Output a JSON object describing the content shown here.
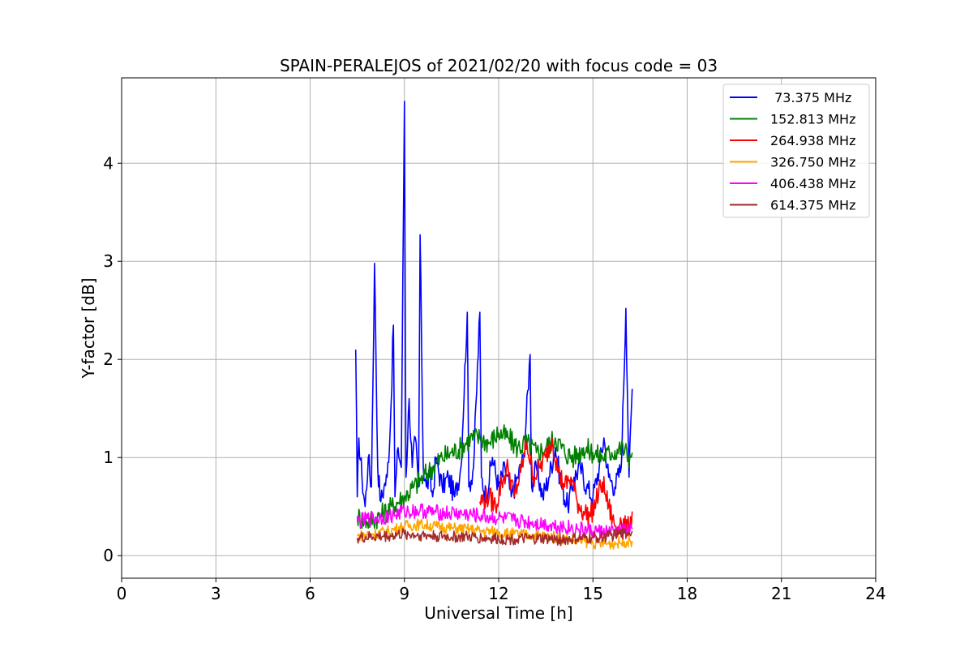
{
  "chart_data": {
    "type": "line",
    "title": "SPAIN-PERALEJOS of 2021/02/20 with focus code = 03",
    "xlabel": "Universal Time [h]",
    "ylabel": "Y-factor [dB]",
    "xlim": [
      0,
      24
    ],
    "ylim": [
      -0.23,
      4.87
    ],
    "xticks": [
      0,
      3,
      6,
      9,
      12,
      15,
      18,
      21,
      24
    ],
    "yticks": [
      0,
      1,
      2,
      3,
      4
    ],
    "grid": true,
    "legend_position": "top-right",
    "series": [
      {
        "name": " 73.375 MHz",
        "color": "#0000ff",
        "x": [
          7.45,
          7.5,
          7.55,
          7.65,
          7.75,
          7.85,
          7.95,
          8.05,
          8.15,
          8.25,
          8.35,
          8.45,
          8.55,
          8.65,
          8.7,
          8.8,
          8.9,
          9.0,
          9.05,
          9.15,
          9.25,
          9.35,
          9.45,
          9.5,
          9.6,
          9.7,
          9.8,
          9.9,
          10.0,
          10.2,
          10.4,
          10.6,
          10.8,
          11.0,
          11.05,
          11.2,
          11.4,
          11.45,
          11.6,
          11.8,
          12.0,
          12.2,
          12.4,
          12.6,
          12.8,
          13.0,
          13.05,
          13.2,
          13.4,
          13.6,
          13.8,
          14.0,
          14.2,
          14.4,
          14.6,
          14.8,
          15.0,
          15.2,
          15.35,
          15.5,
          15.7,
          15.9,
          16.05,
          16.15,
          16.25
        ],
        "y": [
          2.1,
          0.6,
          1.2,
          0.8,
          0.5,
          1.0,
          0.7,
          2.98,
          0.9,
          0.55,
          0.7,
          0.8,
          1.3,
          2.35,
          0.6,
          1.1,
          0.9,
          4.63,
          0.8,
          1.6,
          0.9,
          1.2,
          0.7,
          3.27,
          0.9,
          0.7,
          0.8,
          0.6,
          1.0,
          0.7,
          0.8,
          0.6,
          0.9,
          2.48,
          0.7,
          0.9,
          2.48,
          0.8,
          0.6,
          1.0,
          0.7,
          0.9,
          0.6,
          0.8,
          1.0,
          2.05,
          0.7,
          0.9,
          0.6,
          0.8,
          1.1,
          0.7,
          0.5,
          0.8,
          0.9,
          0.7,
          0.6,
          0.9,
          1.2,
          0.8,
          0.7,
          0.9,
          2.52,
          0.8,
          1.7
        ]
      },
      {
        "name": "152.813 MHz",
        "color": "#008000",
        "x": [
          7.5,
          7.8,
          8.2,
          8.6,
          9.0,
          9.3,
          9.6,
          9.9,
          10.2,
          10.5,
          10.8,
          11.1,
          11.4,
          11.7,
          12.0,
          12.3,
          12.6,
          12.9,
          13.2,
          13.5,
          13.8,
          14.1,
          14.4,
          14.7,
          15.0,
          15.3,
          15.6,
          15.9,
          16.2,
          16.25
        ],
        "y": [
          0.4,
          0.35,
          0.4,
          0.5,
          0.6,
          0.7,
          0.8,
          0.9,
          1.0,
          1.05,
          1.1,
          1.2,
          1.2,
          1.15,
          1.25,
          1.2,
          1.1,
          1.15,
          1.05,
          1.1,
          1.2,
          1.05,
          1.0,
          1.1,
          1.05,
          1.0,
          1.05,
          1.1,
          1.0,
          1.05
        ]
      },
      {
        "name": "264.938 MHz",
        "color": "#ff0000",
        "x": [
          11.4,
          11.7,
          11.9,
          12.1,
          12.3,
          12.5,
          12.7,
          12.9,
          13.1,
          13.3,
          13.5,
          13.7,
          13.9,
          14.1,
          14.3,
          14.5,
          14.7,
          14.9,
          15.1,
          15.3,
          15.5,
          15.7,
          15.9,
          16.1,
          16.25
        ],
        "y": [
          0.55,
          0.6,
          0.5,
          0.75,
          0.9,
          0.6,
          0.85,
          1.15,
          0.8,
          0.9,
          1.0,
          1.2,
          0.85,
          0.7,
          0.8,
          0.55,
          0.45,
          0.4,
          0.55,
          0.75,
          0.5,
          0.3,
          0.35,
          0.25,
          0.45
        ]
      },
      {
        "name": "326.750 MHz",
        "color": "#ffa500",
        "x": [
          7.5,
          8.0,
          8.5,
          9.0,
          9.5,
          10.0,
          10.5,
          11.0,
          11.5,
          12.0,
          12.5,
          13.0,
          13.5,
          14.0,
          14.5,
          15.0,
          15.5,
          16.0,
          16.25
        ],
        "y": [
          0.2,
          0.22,
          0.25,
          0.3,
          0.32,
          0.3,
          0.28,
          0.27,
          0.25,
          0.24,
          0.22,
          0.21,
          0.2,
          0.18,
          0.15,
          0.13,
          0.12,
          0.14,
          0.15
        ]
      },
      {
        "name": "406.438 MHz",
        "color": "#ff00ff",
        "x": [
          7.5,
          8.0,
          8.5,
          9.0,
          9.5,
          10.0,
          10.5,
          11.0,
          11.5,
          12.0,
          12.5,
          13.0,
          13.5,
          14.0,
          14.5,
          15.0,
          15.5,
          16.0,
          16.25
        ],
        "y": [
          0.35,
          0.38,
          0.4,
          0.45,
          0.46,
          0.44,
          0.43,
          0.42,
          0.4,
          0.38,
          0.36,
          0.34,
          0.32,
          0.3,
          0.27,
          0.25,
          0.24,
          0.25,
          0.27
        ]
      },
      {
        "name": "614.375 MHz",
        "color": "#a52a2a",
        "x": [
          7.5,
          8.0,
          8.5,
          9.0,
          9.5,
          10.0,
          10.5,
          11.0,
          11.5,
          12.0,
          12.5,
          13.0,
          13.5,
          14.0,
          14.5,
          15.0,
          15.5,
          16.0,
          16.25
        ],
        "y": [
          0.18,
          0.19,
          0.2,
          0.22,
          0.21,
          0.2,
          0.19,
          0.19,
          0.18,
          0.17,
          0.17,
          0.17,
          0.17,
          0.16,
          0.17,
          0.18,
          0.2,
          0.23,
          0.25
        ]
      }
    ]
  }
}
